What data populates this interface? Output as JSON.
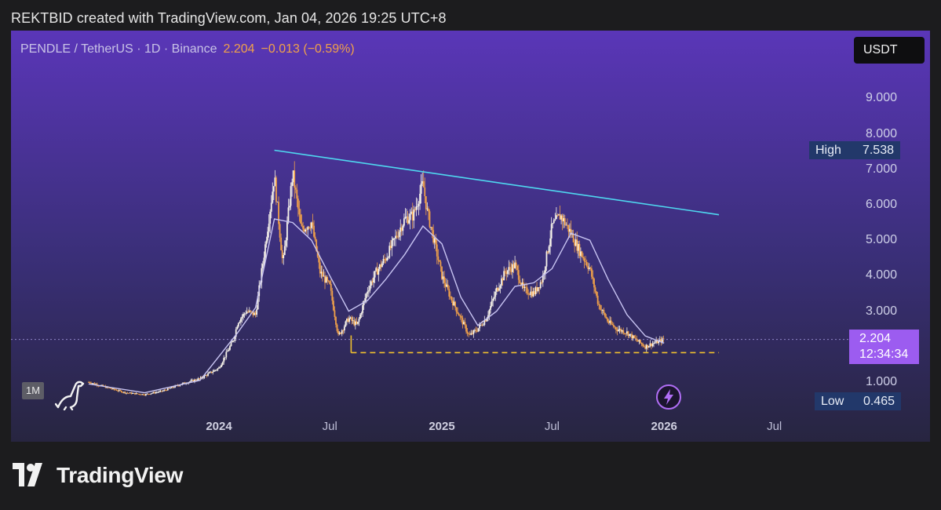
{
  "header_text": "REKTBID created with TradingView.com, Jan 04, 2026 19:25 UTC+8",
  "legend": {
    "symbol": "PENDLE / TetherUS · 1D · Binance",
    "price": "2.204",
    "change": "−0.013 (−0.59%)"
  },
  "currency_button": "USDT",
  "interval_badge": "1M",
  "high": {
    "label": "High",
    "value": "7.538"
  },
  "low": {
    "label": "Low",
    "value": "0.465"
  },
  "current_price": {
    "value": "2.204",
    "countdown": "12:34:34"
  },
  "footer": {
    "brand": "TradingView"
  },
  "colors": {
    "candle": "#f0a14a",
    "moving_average": "#c8c4f2",
    "trendline": "#4fd8f0",
    "support": "#f2c12e",
    "price_tag": "#9c5cf0",
    "hl_box": "#22386a",
    "bg_top": "#5a36b8",
    "bg_bottom": "#272540"
  },
  "icons": [
    "dinosaur-icon",
    "lightning-bolt-icon",
    "tradingview-logo-icon"
  ],
  "chart_data": {
    "type": "line",
    "title": "PENDLE / TetherUS · 1D · Binance",
    "y_axis": {
      "ticks": [
        "1.000",
        "2.000",
        "3.000",
        "4.000",
        "5.000",
        "6.000",
        "7.000",
        "8.000",
        "9.000"
      ],
      "range": [
        0.45,
        10.2
      ]
    },
    "x_axis": {
      "ticks": [
        "2024",
        "Jul",
        "2025",
        "Jul",
        "2026",
        "Jul"
      ]
    },
    "series": [
      {
        "type": "candlestick-close",
        "x": [
          "2023-06",
          "2023-07",
          "2023-08",
          "2023-09",
          "2023-10",
          "2023-11",
          "2023-12",
          "2024-01",
          "2024-01-25",
          "2024-02",
          "2024-02-15",
          "2024-03",
          "2024-03-15",
          "2024-04",
          "2024-04-15",
          "2024-05",
          "2024-05-15",
          "2024-06",
          "2024-06-15",
          "2024-07",
          "2024-07-15",
          "2024-08",
          "2024-08-15",
          "2024-09",
          "2024-09-15",
          "2024-10",
          "2024-10-15",
          "2024-11",
          "2024-11-15",
          "2024-12",
          "2024-12-08",
          "2024-12-15",
          "2025-01",
          "2025-01-15",
          "2025-02",
          "2025-02-15",
          "2025-03",
          "2025-03-15",
          "2025-04",
          "2025-04-15",
          "2025-05",
          "2025-05-15",
          "2025-06",
          "2025-06-15",
          "2025-07",
          "2025-07-15",
          "2025-08",
          "2025-08-15",
          "2025-09",
          "2025-09-15",
          "2025-10",
          "2025-10-15",
          "2025-11",
          "2025-11-15",
          "2025-12",
          "2025-12-15",
          "2026-01"
        ],
        "values": [
          1.0,
          0.85,
          0.7,
          0.65,
          0.75,
          0.95,
          1.1,
          1.4,
          2.2,
          2.7,
          3.0,
          2.9,
          4.6,
          6.8,
          4.3,
          6.9,
          5.3,
          5.5,
          4.1,
          3.7,
          2.3,
          2.8,
          2.6,
          3.6,
          4.1,
          4.5,
          5.0,
          5.6,
          5.7,
          6.6,
          5.8,
          5.3,
          4.0,
          3.4,
          2.8,
          2.3,
          2.5,
          2.8,
          3.6,
          4.1,
          4.3,
          3.6,
          3.5,
          3.9,
          5.4,
          5.7,
          5.2,
          4.7,
          4.2,
          3.2,
          2.7,
          2.5,
          2.4,
          2.2,
          2.0,
          2.1,
          2.2
        ]
      },
      {
        "type": "moving-average",
        "x": [
          "2023-06",
          "2023-09",
          "2023-12",
          "2024-02",
          "2024-03",
          "2024-04",
          "2024-05",
          "2024-06",
          "2024-07",
          "2024-08",
          "2024-09",
          "2024-10",
          "2024-11",
          "2024-12",
          "2025-01",
          "2025-02",
          "2025-03",
          "2025-04",
          "2025-05",
          "2025-06",
          "2025-07",
          "2025-08",
          "2025-09",
          "2025-10",
          "2025-11",
          "2025-12",
          "2026-01"
        ],
        "values": [
          0.95,
          0.7,
          1.05,
          2.4,
          3.1,
          5.6,
          5.5,
          5.0,
          4.0,
          3.0,
          3.3,
          3.9,
          4.6,
          5.4,
          4.9,
          3.4,
          2.6,
          3.0,
          3.7,
          3.8,
          4.2,
          5.2,
          5.0,
          3.9,
          2.9,
          2.3,
          2.1
        ]
      }
    ],
    "annotations": [
      {
        "type": "trendline",
        "from": {
          "x": "2024-04-01",
          "y": 7.538
        },
        "to": {
          "x": "2026-04-01",
          "y": 5.72
        }
      },
      {
        "type": "horizontal-dashed",
        "from": {
          "x": "2024-08-05",
          "y": 1.83
        },
        "to": {
          "x": "2026-04-01",
          "y": 1.83
        }
      }
    ]
  }
}
